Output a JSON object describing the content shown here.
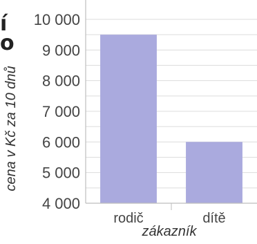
{
  "edge_text": [
    "í",
    "o"
  ],
  "chart_data": {
    "type": "bar",
    "categories": [
      "rodič",
      "dítě"
    ],
    "values": [
      9500,
      6000
    ],
    "xlabel": "zákazník",
    "ylabel": "cena v Kč za 10 dnů",
    "ylim": [
      4000,
      10000
    ],
    "yticks": [
      {
        "value": 10000,
        "label": "10 000"
      },
      {
        "value": 9000,
        "label": "9 000"
      },
      {
        "value": 8000,
        "label": "8 000"
      },
      {
        "value": 7000,
        "label": "7 000"
      },
      {
        "value": 6000,
        "label": "6 000"
      },
      {
        "value": 5000,
        "label": "5 000"
      },
      {
        "value": 4000,
        "label": "4 000"
      }
    ],
    "grid": true,
    "colors": {
      "bar": "#aaaade",
      "grid": "#dcdcdc",
      "axis": "#bdbdbd",
      "text": "#444444",
      "label": "#333333"
    }
  }
}
